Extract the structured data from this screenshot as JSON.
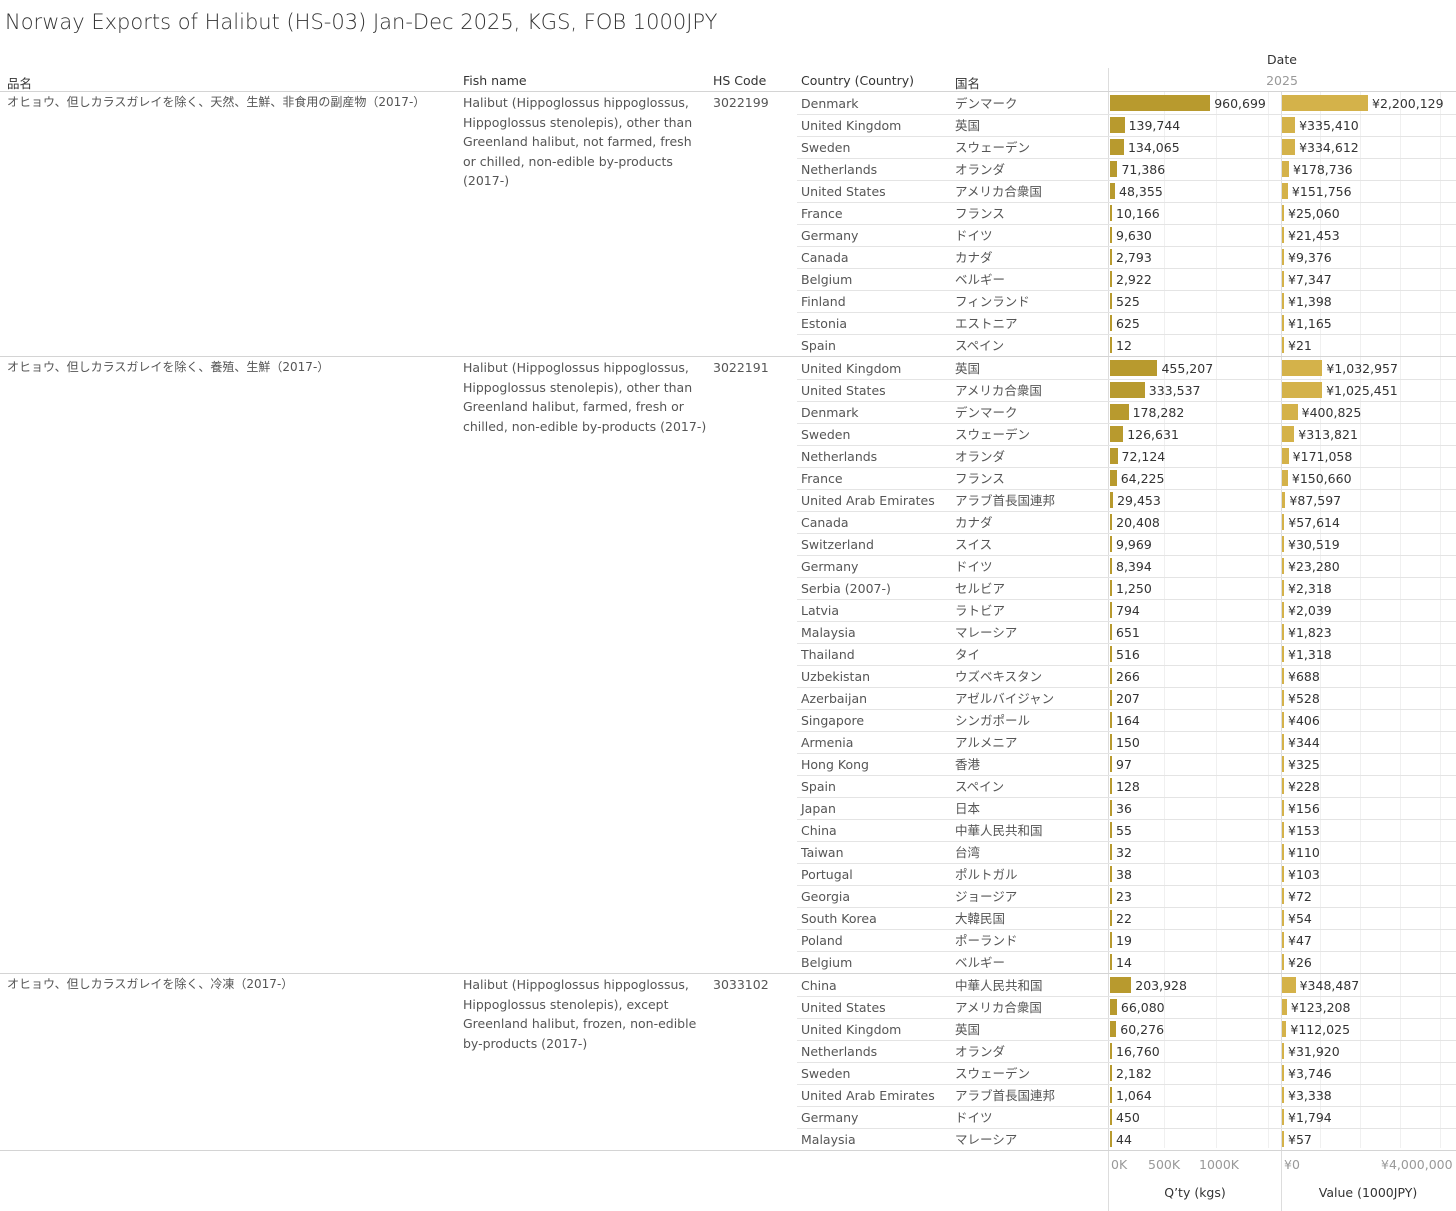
{
  "title": "Norway Exports of Halibut (HS-03) Jan-Dec 2025, KGS, FOB 1000JPY",
  "headers": {
    "hinmei": "品名",
    "fish_name": "Fish name",
    "hs_code": "HS Code",
    "country": "Country (Country)",
    "kokumei": "国名",
    "date": "Date",
    "year": "2025"
  },
  "colors": {
    "qty_bar": "#b89a2e",
    "value_bar": "#d4b24a"
  },
  "chart_data": {
    "type": "table",
    "axes": {
      "qty": {
        "title": "Q’ty (kgs)",
        "ticks": [
          "0K",
          "500K",
          "1000K"
        ],
        "range": [
          0,
          1630000
        ]
      },
      "value": {
        "title": "Value (1000JPY)",
        "ticks": [
          "¥0",
          "¥4,000,000"
        ],
        "range": [
          0,
          4400000
        ]
      }
    },
    "groups": [
      {
        "hinmei": "オヒョウ、但しカラスガレイを除く、天然、生鮮、非食用の副産物（2017-）",
        "fish_name": "Halibut (Hippoglossus hippoglossus, Hippoglossus stenolepis), other than Greenland halibut, not farmed, fresh or chilled, non-edible by-products (2017-)",
        "hs_code": "3022199",
        "rows": [
          [
            "Denmark",
            "デンマーク",
            960699,
            "960,699",
            2200129,
            "¥2,200,129"
          ],
          [
            "United Kingdom",
            "英国",
            139744,
            "139,744",
            335410,
            "¥335,410"
          ],
          [
            "Sweden",
            "スウェーデン",
            134065,
            "134,065",
            334612,
            "¥334,612"
          ],
          [
            "Netherlands",
            "オランダ",
            71386,
            "71,386",
            178736,
            "¥178,736"
          ],
          [
            "United States",
            "アメリカ合衆国",
            48355,
            "48,355",
            151756,
            "¥151,756"
          ],
          [
            "France",
            "フランス",
            10166,
            "10,166",
            25060,
            "¥25,060"
          ],
          [
            "Germany",
            "ドイツ",
            9630,
            "9,630",
            21453,
            "¥21,453"
          ],
          [
            "Canada",
            "カナダ",
            2793,
            "2,793",
            9376,
            "¥9,376"
          ],
          [
            "Belgium",
            "ベルギー",
            2922,
            "2,922",
            7347,
            "¥7,347"
          ],
          [
            "Finland",
            "フィンランド",
            525,
            "525",
            1398,
            "¥1,398"
          ],
          [
            "Estonia",
            "エストニア",
            625,
            "625",
            1165,
            "¥1,165"
          ],
          [
            "Spain",
            "スペイン",
            12,
            "12",
            21,
            "¥21"
          ]
        ]
      },
      {
        "hinmei": "オヒョウ、但しカラスガレイを除く、養殖、生鮮（2017-）",
        "fish_name": "Halibut (Hippoglossus hippoglossus, Hippoglossus stenolepis), other than Greenland halibut, farmed, fresh or chilled, non-edible by-products (2017-)",
        "hs_code": "3022191",
        "rows": [
          [
            "United Kingdom",
            "英国",
            455207,
            "455,207",
            1032957,
            "¥1,032,957"
          ],
          [
            "United States",
            "アメリカ合衆国",
            333537,
            "333,537",
            1025451,
            "¥1,025,451"
          ],
          [
            "Denmark",
            "デンマーク",
            178282,
            "178,282",
            400825,
            "¥400,825"
          ],
          [
            "Sweden",
            "スウェーデン",
            126631,
            "126,631",
            313821,
            "¥313,821"
          ],
          [
            "Netherlands",
            "オランダ",
            72124,
            "72,124",
            171058,
            "¥171,058"
          ],
          [
            "France",
            "フランス",
            64225,
            "64,225",
            150660,
            "¥150,660"
          ],
          [
            "United Arab Emirates",
            "アラブ首長国連邦",
            29453,
            "29,453",
            87597,
            "¥87,597"
          ],
          [
            "Canada",
            "カナダ",
            20408,
            "20,408",
            57614,
            "¥57,614"
          ],
          [
            "Switzerland",
            "スイス",
            9969,
            "9,969",
            30519,
            "¥30,519"
          ],
          [
            "Germany",
            "ドイツ",
            8394,
            "8,394",
            23280,
            "¥23,280"
          ],
          [
            "Serbia (2007-)",
            "セルビア",
            1250,
            "1,250",
            2318,
            "¥2,318"
          ],
          [
            "Latvia",
            "ラトビア",
            794,
            "794",
            2039,
            "¥2,039"
          ],
          [
            "Malaysia",
            "マレーシア",
            651,
            "651",
            1823,
            "¥1,823"
          ],
          [
            "Thailand",
            "タイ",
            516,
            "516",
            1318,
            "¥1,318"
          ],
          [
            "Uzbekistan",
            "ウズベキスタン",
            266,
            "266",
            688,
            "¥688"
          ],
          [
            "Azerbaijan",
            "アゼルバイジャン",
            207,
            "207",
            528,
            "¥528"
          ],
          [
            "Singapore",
            "シンガポール",
            164,
            "164",
            406,
            "¥406"
          ],
          [
            "Armenia",
            "アルメニア",
            150,
            "150",
            344,
            "¥344"
          ],
          [
            "Hong Kong",
            "香港",
            97,
            "97",
            325,
            "¥325"
          ],
          [
            "Spain",
            "スペイン",
            128,
            "128",
            228,
            "¥228"
          ],
          [
            "Japan",
            "日本",
            36,
            "36",
            156,
            "¥156"
          ],
          [
            "China",
            "中華人民共和国",
            55,
            "55",
            153,
            "¥153"
          ],
          [
            "Taiwan",
            "台湾",
            32,
            "32",
            110,
            "¥110"
          ],
          [
            "Portugal",
            "ポルトガル",
            38,
            "38",
            103,
            "¥103"
          ],
          [
            "Georgia",
            "ジョージア",
            23,
            "23",
            72,
            "¥72"
          ],
          [
            "South Korea",
            "大韓民国",
            22,
            "22",
            54,
            "¥54"
          ],
          [
            "Poland",
            "ポーランド",
            19,
            "19",
            47,
            "¥47"
          ],
          [
            "Belgium",
            "ベルギー",
            14,
            "14",
            26,
            "¥26"
          ]
        ]
      },
      {
        "hinmei": "オヒョウ、但しカラスガレイを除く、冷凍（2017-）",
        "fish_name": "Halibut (Hippoglossus hippoglossus, Hippoglossus stenolepis), except Greenland halibut, frozen, non-edible by-products (2017-)",
        "hs_code": "3033102",
        "rows": [
          [
            "China",
            "中華人民共和国",
            203928,
            "203,928",
            348487,
            "¥348,487"
          ],
          [
            "United States",
            "アメリカ合衆国",
            66080,
            "66,080",
            123208,
            "¥123,208"
          ],
          [
            "United Kingdom",
            "英国",
            60276,
            "60,276",
            112025,
            "¥112,025"
          ],
          [
            "Netherlands",
            "オランダ",
            16760,
            "16,760",
            31920,
            "¥31,920"
          ],
          [
            "Sweden",
            "スウェーデン",
            2182,
            "2,182",
            3746,
            "¥3,746"
          ],
          [
            "United Arab Emirates",
            "アラブ首長国連邦",
            1064,
            "1,064",
            3338,
            "¥3,338"
          ],
          [
            "Germany",
            "ドイツ",
            450,
            "450",
            1794,
            "¥1,794"
          ],
          [
            "Malaysia",
            "マレーシア",
            44,
            "44",
            57,
            "¥57"
          ]
        ]
      }
    ]
  }
}
